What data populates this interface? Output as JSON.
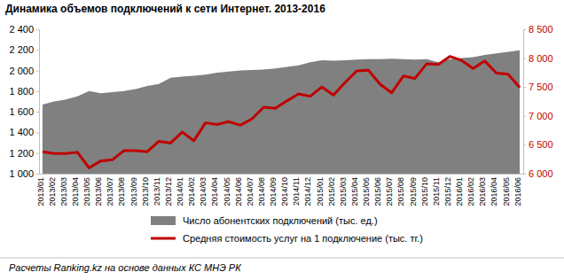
{
  "chart_data": {
    "type": "line",
    "title": "Динамика объемов подключений к сети Интернет. 2013-2016",
    "source": "Расчеты Ranking.kz на основе данных КС МНЭ РК",
    "categories": [
      "2013/01",
      "2013/02",
      "2013/03",
      "2013/04",
      "2013/05",
      "2013/06",
      "2013/07",
      "2013/08",
      "2013/09",
      "2013/10",
      "2013/11",
      "2013/12",
      "2014/01",
      "2014/02",
      "2014/03",
      "2014/04",
      "2014/05",
      "2014/06",
      "2014/07",
      "2014/08",
      "2014/09",
      "2014/10",
      "2014/11",
      "2014/12",
      "2015/01",
      "2015/02",
      "2015/03",
      "2015/04",
      "2015/05",
      "2015/06",
      "2015/07",
      "2015/08",
      "2015/09",
      "2015/10",
      "2015/11",
      "2015/12",
      "2016/01",
      "2016/02",
      "2016/03",
      "2016/04",
      "2016/05",
      "2016/06"
    ],
    "series": [
      {
        "name": "Число абонентских подключений (тыс. ед.)",
        "type": "area",
        "color": "#808080",
        "axis": "y",
        "values": [
          1670,
          1700,
          1720,
          1750,
          1800,
          1780,
          1790,
          1800,
          1820,
          1850,
          1870,
          1930,
          1940,
          1950,
          1960,
          1980,
          1990,
          2000,
          2005,
          2010,
          2020,
          2035,
          2050,
          2080,
          2100,
          2095,
          2100,
          2105,
          2110,
          2110,
          2115,
          2110,
          2105,
          2110,
          2080,
          2110,
          2120,
          2130,
          2150,
          2165,
          2180,
          2195
        ]
      },
      {
        "name": "Средняя стоимость услуг на 1 подключение (тыс. тг.)",
        "type": "line",
        "color": "#c00000",
        "axis": "y2",
        "values": [
          6380,
          6350,
          6350,
          6370,
          6100,
          6220,
          6240,
          6400,
          6400,
          6380,
          6560,
          6530,
          6720,
          6570,
          6880,
          6850,
          6900,
          6840,
          6950,
          7150,
          7130,
          7260,
          7380,
          7340,
          7500,
          7360,
          7580,
          7780,
          7790,
          7550,
          7400,
          7690,
          7650,
          7900,
          7890,
          8030,
          7960,
          7820,
          7950,
          7740,
          7720,
          7490
        ]
      }
    ],
    "ylim": [
      1000,
      2400
    ],
    "yticks": [
      {
        "value": 1000,
        "label": "1 000"
      },
      {
        "value": 1200,
        "label": "1 200"
      },
      {
        "value": 1400,
        "label": "1 400"
      },
      {
        "value": 1600,
        "label": "1 600"
      },
      {
        "value": 1800,
        "label": "1 800"
      },
      {
        "value": 2000,
        "label": "2 000"
      },
      {
        "value": 2200,
        "label": "2 200"
      },
      {
        "value": 2400,
        "label": "2 400"
      }
    ],
    "y2lim": [
      6000,
      8500
    ],
    "y2ticks": [
      {
        "value": 6000,
        "label": "6 000"
      },
      {
        "value": 6500,
        "label": "6 500"
      },
      {
        "value": 7000,
        "label": "7 000"
      },
      {
        "value": 7500,
        "label": "7 500"
      },
      {
        "value": 8000,
        "label": "8 000"
      },
      {
        "value": 8500,
        "label": "8 500"
      }
    ],
    "grid": false,
    "legend": "bottom"
  }
}
